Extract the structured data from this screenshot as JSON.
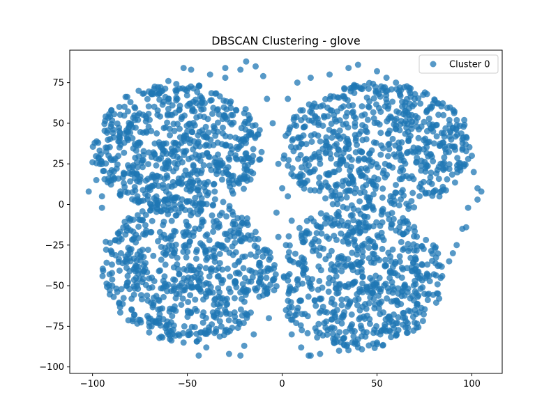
{
  "chart_data": {
    "type": "scatter",
    "title": "DBSCAN Clustering - glove",
    "xlabel": "",
    "ylabel": "",
    "xlim": [
      -112,
      116
    ],
    "ylim": [
      -104,
      95
    ],
    "x_ticks": [
      -100,
      -50,
      0,
      50,
      100
    ],
    "x_tick_labels": [
      "−100",
      "−50",
      "0",
      "50",
      "100"
    ],
    "y_ticks": [
      -100,
      -75,
      -50,
      -25,
      0,
      25,
      50,
      75
    ],
    "y_tick_labels": [
      "−100",
      "−75",
      "−50",
      "−25",
      "0",
      "25",
      "50",
      "75"
    ],
    "grid": false,
    "legend_position": "top-right",
    "series": [
      {
        "name": "Cluster 0",
        "color": "#1f77b4",
        "alpha": 0.75,
        "lobes": [
          {
            "center": [
              -55,
              35
            ],
            "radii": [
              45,
              40
            ]
          },
          {
            "center": [
              -50,
              -40
            ],
            "radii": [
              45,
              45
            ]
          },
          {
            "center": [
              50,
              35
            ],
            "radii": [
              50,
              40
            ]
          },
          {
            "center": [
              40,
              -45
            ],
            "radii": [
              45,
              45
            ]
          }
        ],
        "values": [
          [
            -102,
            8
          ],
          [
            -100,
            26
          ],
          [
            -98,
            15
          ],
          [
            -95,
            -2
          ],
          [
            -93,
            -23
          ],
          [
            -91,
            -43
          ],
          [
            -97,
            38
          ],
          [
            -90,
            58
          ],
          [
            -80,
            63
          ],
          [
            -68,
            68
          ],
          [
            -60,
            76
          ],
          [
            -52,
            84
          ],
          [
            -48,
            83
          ],
          [
            -38,
            80
          ],
          [
            -30,
            84
          ],
          [
            -22,
            83
          ],
          [
            -19,
            88
          ],
          [
            -14,
            85
          ],
          [
            -10,
            79
          ],
          [
            -8,
            65
          ],
          [
            -5,
            50
          ],
          [
            -2,
            25
          ],
          [
            0,
            10
          ],
          [
            -3,
            -5
          ],
          [
            -2,
            -20
          ],
          [
            -6,
            -40
          ],
          [
            -8,
            -55
          ],
          [
            -7,
            -70
          ],
          [
            -15,
            -80
          ],
          [
            -20,
            -87
          ],
          [
            -28,
            -92
          ],
          [
            -40,
            -88
          ],
          [
            -52,
            -85
          ],
          [
            -60,
            -80
          ],
          [
            -70,
            -75
          ],
          [
            -78,
            -68
          ],
          [
            -86,
            -61
          ],
          [
            -82,
            -50
          ],
          [
            -88,
            -22
          ],
          [
            -85,
            -30
          ],
          [
            3,
            65
          ],
          [
            8,
            75
          ],
          [
            15,
            78
          ],
          [
            25,
            80
          ],
          [
            35,
            84
          ],
          [
            40,
            86
          ],
          [
            50,
            82
          ],
          [
            55,
            78
          ],
          [
            62,
            72
          ],
          [
            70,
            68
          ],
          [
            78,
            60
          ],
          [
            85,
            55
          ],
          [
            90,
            47
          ],
          [
            95,
            40
          ],
          [
            100,
            30
          ],
          [
            101,
            20
          ],
          [
            103,
            10
          ],
          [
            105,
            8
          ],
          [
            103,
            3
          ],
          [
            98,
            -2
          ],
          [
            95,
            -15
          ],
          [
            92,
            -25
          ],
          [
            88,
            -35
          ],
          [
            80,
            -43
          ],
          [
            75,
            -55
          ],
          [
            70,
            -65
          ],
          [
            60,
            -73
          ],
          [
            55,
            -78
          ],
          [
            50,
            -85
          ],
          [
            40,
            -88
          ],
          [
            30,
            -90
          ],
          [
            20,
            -92
          ],
          [
            15,
            -93
          ],
          [
            10,
            -88
          ],
          [
            5,
            -80
          ],
          [
            2,
            -65
          ],
          [
            1,
            -45
          ],
          [
            2,
            -25
          ],
          [
            5,
            -10
          ],
          [
            3,
            5
          ],
          [
            10,
            12
          ],
          [
            15,
            20
          ],
          [
            20,
            25
          ],
          [
            12,
            48
          ],
          [
            96,
            52
          ],
          [
            97,
            -14
          ],
          [
            -95,
            5
          ],
          [
            -30,
            78
          ],
          [
            -60,
            65
          ],
          [
            60,
            75
          ],
          [
            90,
            -30
          ],
          [
            -44,
            -93
          ],
          [
            -22,
            -93
          ],
          [
            14,
            -93
          ],
          [
            50,
            -86
          ]
        ]
      }
    ]
  }
}
